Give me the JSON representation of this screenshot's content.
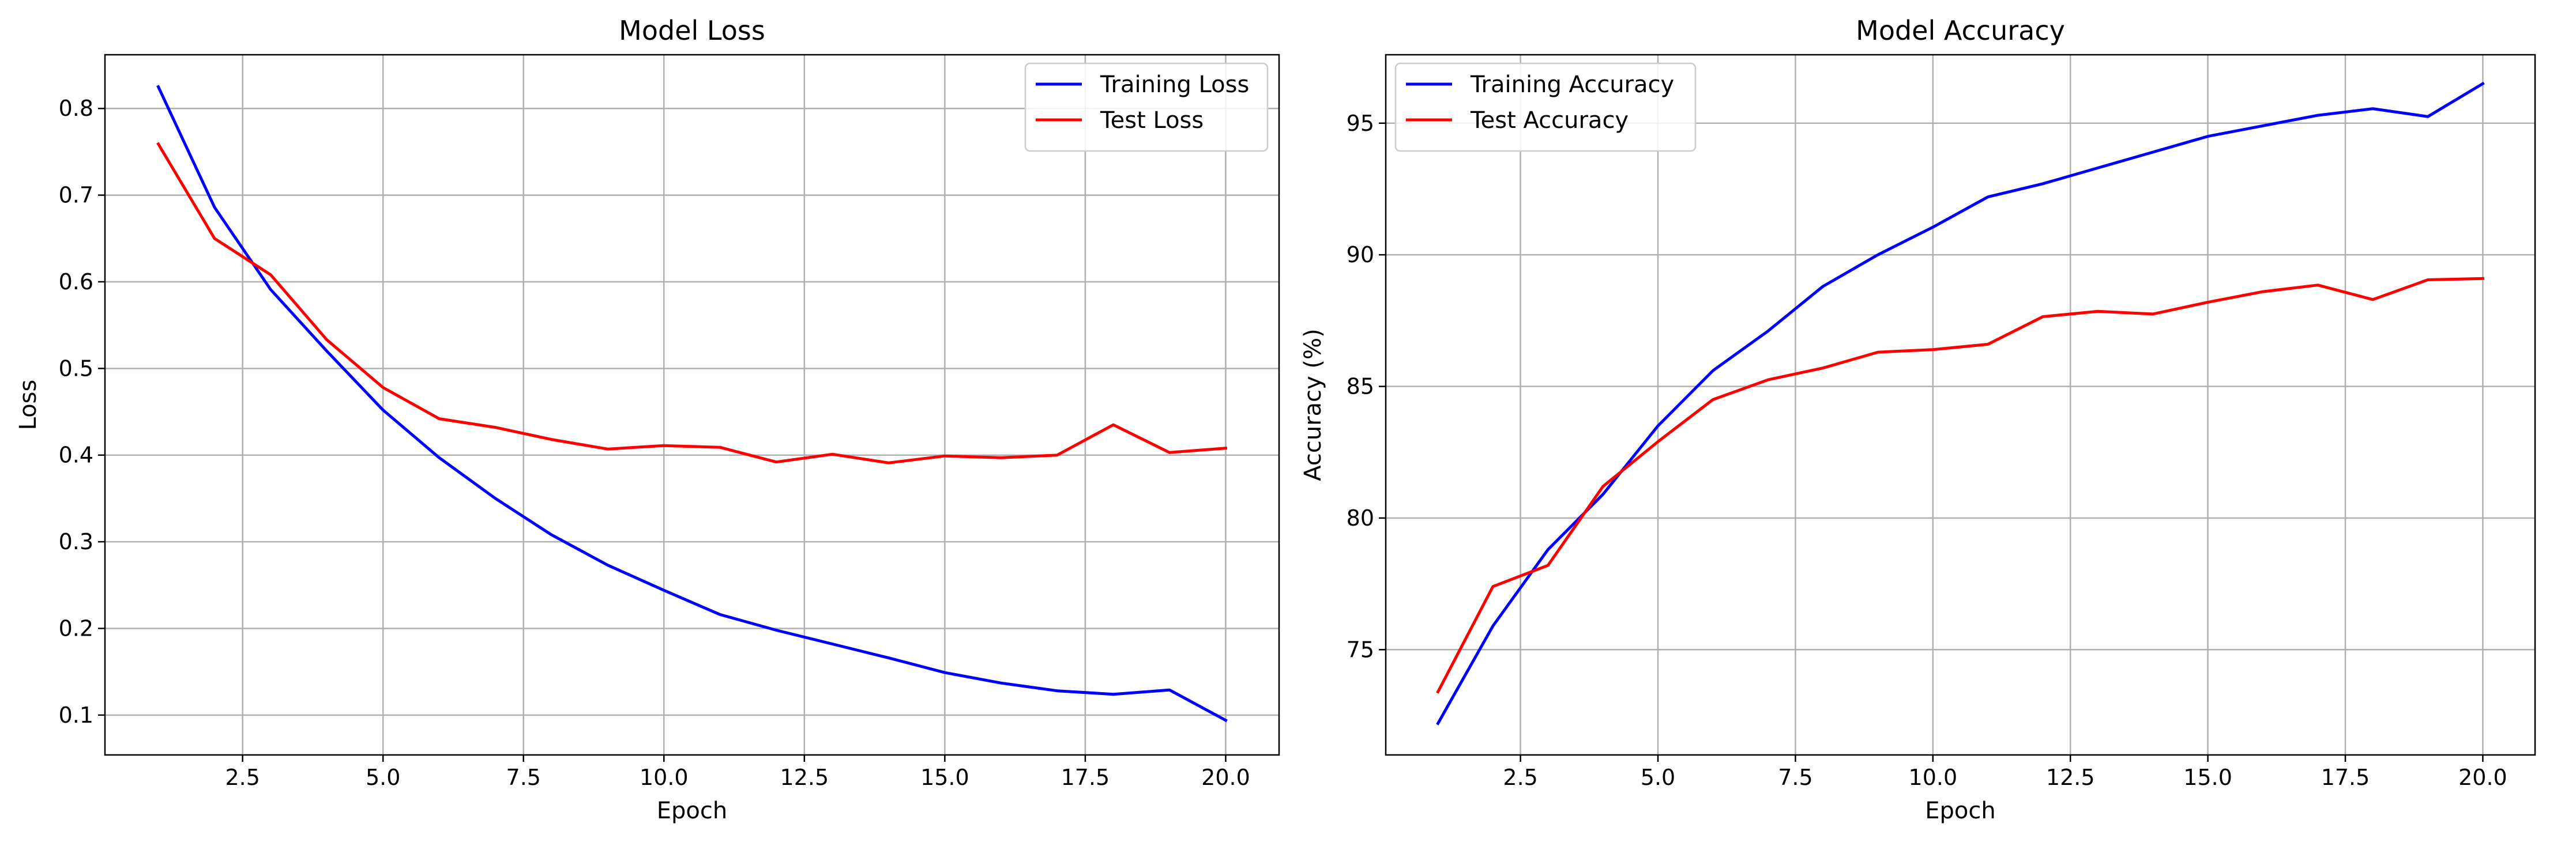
{
  "colors": {
    "training": "#0000ff",
    "test": "#ff0000",
    "grid": "#b0b0b0",
    "axes": "#000000",
    "legend_border": "#cccccc",
    "background": "#ffffff"
  },
  "chart_data": [
    {
      "type": "line",
      "title": "Model Loss",
      "xlabel": "Epoch",
      "ylabel": "Loss",
      "xlim": [
        0.05,
        20.95
      ],
      "ylim": [
        0.054,
        0.862
      ],
      "xticks": [
        2.5,
        5.0,
        7.5,
        10.0,
        12.5,
        15.0,
        17.5,
        20.0
      ],
      "xtick_labels": [
        "2.5",
        "5.0",
        "7.5",
        "10.0",
        "12.5",
        "15.0",
        "17.5",
        "20.0"
      ],
      "yticks": [
        0.1,
        0.2,
        0.3,
        0.4,
        0.5,
        0.6,
        0.7,
        0.8
      ],
      "ytick_labels": [
        "0.1",
        "0.2",
        "0.3",
        "0.4",
        "0.5",
        "0.6",
        "0.7",
        "0.8"
      ],
      "grid": true,
      "legend_position": "top-right",
      "x": [
        1,
        2,
        3,
        4,
        5,
        6,
        7,
        8,
        9,
        10,
        11,
        12,
        13,
        14,
        15,
        16,
        17,
        18,
        19,
        20
      ],
      "series": [
        {
          "name": "Training Loss",
          "color_key": "training",
          "values": [
            0.825,
            0.686,
            0.591,
            0.52,
            0.452,
            0.397,
            0.35,
            0.308,
            0.273,
            0.244,
            0.216,
            0.198,
            0.182,
            0.166,
            0.149,
            0.137,
            0.128,
            0.124,
            0.129,
            0.094
          ]
        },
        {
          "name": "Test Loss",
          "color_key": "test",
          "values": [
            0.759,
            0.65,
            0.608,
            0.533,
            0.478,
            0.442,
            0.432,
            0.418,
            0.407,
            0.411,
            0.409,
            0.392,
            0.401,
            0.391,
            0.399,
            0.397,
            0.4,
            0.435,
            0.403,
            0.408
          ]
        }
      ]
    },
    {
      "type": "line",
      "title": "Model Accuracy",
      "xlabel": "Epoch",
      "ylabel": "Accuracy (%)",
      "xlim": [
        0.05,
        20.95
      ],
      "ylim": [
        71.0,
        97.6
      ],
      "xticks": [
        2.5,
        5.0,
        7.5,
        10.0,
        12.5,
        15.0,
        17.5,
        20.0
      ],
      "xtick_labels": [
        "2.5",
        "5.0",
        "7.5",
        "10.0",
        "12.5",
        "15.0",
        "17.5",
        "20.0"
      ],
      "yticks": [
        75,
        80,
        85,
        90,
        95
      ],
      "ytick_labels": [
        "75",
        "80",
        "85",
        "90",
        "95"
      ],
      "grid": true,
      "legend_position": "top-left",
      "x": [
        1,
        2,
        3,
        4,
        5,
        6,
        7,
        8,
        9,
        10,
        11,
        12,
        13,
        14,
        15,
        16,
        17,
        18,
        19,
        20
      ],
      "series": [
        {
          "name": "Training Accuracy",
          "color_key": "training",
          "values": [
            72.2,
            75.9,
            78.8,
            80.9,
            83.5,
            85.6,
            87.1,
            88.8,
            90.0,
            91.05,
            92.2,
            92.7,
            93.3,
            93.9,
            94.5,
            94.9,
            95.3,
            95.55,
            95.25,
            96.5
          ]
        },
        {
          "name": "Test Accuracy",
          "color_key": "test",
          "values": [
            73.4,
            77.4,
            78.2,
            81.2,
            82.9,
            84.5,
            85.25,
            85.7,
            86.3,
            86.4,
            86.6,
            87.65,
            87.85,
            87.75,
            88.2,
            88.6,
            88.85,
            88.3,
            89.05,
            89.1
          ]
        }
      ]
    }
  ]
}
